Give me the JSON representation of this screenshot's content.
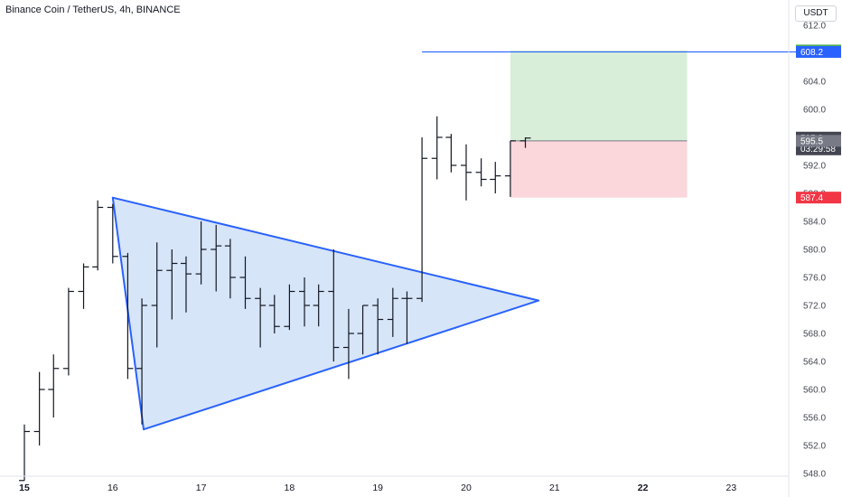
{
  "header": {
    "title": "Binance Coin / TetherUS, 4h, BINANCE"
  },
  "price_axis": {
    "currency": "USDT"
  },
  "colors": {
    "candle": "#131722",
    "triangle_stroke": "#2962ff",
    "triangle_fill": "#cfe0f7",
    "hline": "#2962ff",
    "profit_zone": "#d8eed8",
    "loss_zone": "#fbd6da",
    "badge_green": "#4caf50",
    "badge_blue": "#2962ff",
    "badge_red": "#f23645",
    "badge_dark": "#434651",
    "badge_gray": "#787b86"
  },
  "chart_data": {
    "type": "bar",
    "style": "ohlc",
    "xlabel": "",
    "ylabel": "",
    "ylim": [
      547,
      613
    ],
    "grid": false,
    "x_ticks": [
      "15",
      "16",
      "17",
      "18",
      "19",
      "20",
      "21",
      "22",
      "23"
    ],
    "y_ticks": [
      548.0,
      552.0,
      556.0,
      560.0,
      564.0,
      568.0,
      572.0,
      576.0,
      580.0,
      584.0,
      588.0,
      592.0,
      596.0,
      600.0,
      604.0,
      608.0,
      612.0
    ],
    "bars": [
      {
        "t": 15.0,
        "o": 547.0,
        "h": 555.0,
        "l": 547.0,
        "c": 554.0
      },
      {
        "t": 15.17,
        "o": 554.0,
        "h": 562.5,
        "l": 552.0,
        "c": 560.0
      },
      {
        "t": 15.33,
        "o": 560.0,
        "h": 565.0,
        "l": 556.0,
        "c": 563.0
      },
      {
        "t": 15.5,
        "o": 563.0,
        "h": 574.5,
        "l": 562.0,
        "c": 574.0
      },
      {
        "t": 15.67,
        "o": 574.0,
        "h": 578.0,
        "l": 571.5,
        "c": 577.5
      },
      {
        "t": 15.83,
        "o": 577.5,
        "h": 587.0,
        "l": 577.0,
        "c": 586.0
      },
      {
        "t": 16.0,
        "o": 586.0,
        "h": 586.5,
        "l": 578.0,
        "c": 579.0
      },
      {
        "t": 16.17,
        "o": 579.0,
        "h": 579.5,
        "l": 561.5,
        "c": 563.0
      },
      {
        "t": 16.33,
        "o": 563.0,
        "h": 573.0,
        "l": 555.0,
        "c": 572.0
      },
      {
        "t": 16.5,
        "o": 572.0,
        "h": 581.0,
        "l": 566.0,
        "c": 577.0
      },
      {
        "t": 16.67,
        "o": 577.0,
        "h": 580.0,
        "l": 570.0,
        "c": 578.0
      },
      {
        "t": 16.83,
        "o": 578.0,
        "h": 579.0,
        "l": 571.0,
        "c": 576.5
      },
      {
        "t": 17.0,
        "o": 576.5,
        "h": 584.0,
        "l": 575.0,
        "c": 580.0
      },
      {
        "t": 17.17,
        "o": 580.0,
        "h": 583.5,
        "l": 574.0,
        "c": 580.5
      },
      {
        "t": 17.33,
        "o": 580.5,
        "h": 581.5,
        "l": 573.0,
        "c": 576.0
      },
      {
        "t": 17.5,
        "o": 576.0,
        "h": 579.0,
        "l": 571.5,
        "c": 573.0
      },
      {
        "t": 17.67,
        "o": 573.0,
        "h": 574.5,
        "l": 566.0,
        "c": 572.0
      },
      {
        "t": 17.83,
        "o": 572.0,
        "h": 573.5,
        "l": 568.0,
        "c": 569.0
      },
      {
        "t": 18.0,
        "o": 569.0,
        "h": 575.0,
        "l": 568.5,
        "c": 574.0
      },
      {
        "t": 18.17,
        "o": 574.0,
        "h": 576.0,
        "l": 569.0,
        "c": 572.0
      },
      {
        "t": 18.33,
        "o": 572.0,
        "h": 575.0,
        "l": 569.0,
        "c": 574.0
      },
      {
        "t": 18.5,
        "o": 574.0,
        "h": 580.0,
        "l": 564.0,
        "c": 566.0
      },
      {
        "t": 18.67,
        "o": 566.0,
        "h": 571.5,
        "l": 561.5,
        "c": 568.0
      },
      {
        "t": 18.83,
        "o": 568.0,
        "h": 572.0,
        "l": 565.0,
        "c": 572.0
      },
      {
        "t": 19.0,
        "o": 572.0,
        "h": 573.0,
        "l": 565.0,
        "c": 570.0
      },
      {
        "t": 19.17,
        "o": 570.0,
        "h": 574.5,
        "l": 567.5,
        "c": 573.0
      },
      {
        "t": 19.33,
        "o": 573.0,
        "h": 574.0,
        "l": 566.5,
        "c": 573.0
      },
      {
        "t": 19.5,
        "o": 573.0,
        "h": 596.0,
        "l": 572.5,
        "c": 593.0
      },
      {
        "t": 19.67,
        "o": 593.0,
        "h": 599.0,
        "l": 590.0,
        "c": 596.0
      },
      {
        "t": 19.83,
        "o": 596.0,
        "h": 596.5,
        "l": 591.0,
        "c": 592.0
      },
      {
        "t": 20.0,
        "o": 592.0,
        "h": 595.0,
        "l": 587.0,
        "c": 591.0
      },
      {
        "t": 20.17,
        "o": 591.0,
        "h": 593.0,
        "l": 589.0,
        "c": 590.0
      },
      {
        "t": 20.33,
        "o": 590.0,
        "h": 592.5,
        "l": 588.0,
        "c": 590.5
      },
      {
        "t": 20.5,
        "o": 590.5,
        "h": 595.5,
        "l": 587.5,
        "c": 595.5
      },
      {
        "t": 20.67,
        "o": 595.5,
        "h": 596.0,
        "l": 594.5,
        "c": 595.9
      }
    ],
    "triangle": [
      {
        "t": 16.0,
        "p": 587.4
      },
      {
        "t": 16.35,
        "p": 554.3
      },
      {
        "t": 20.82,
        "p": 572.7
      }
    ],
    "horizontal_line": {
      "t_start": 19.5,
      "t_end": 23.9,
      "p": 608.2
    },
    "position": {
      "t_start": 20.5,
      "t_end": 22.5,
      "entry": 595.5,
      "target": 608.4,
      "stop": 587.4
    },
    "price_labels": [
      {
        "value": "608.4",
        "p": 608.4,
        "color": "badge_green"
      },
      {
        "value": "608.2",
        "p": 608.2,
        "color": "badge_blue"
      },
      {
        "value": "595.9",
        "p": 595.9,
        "color": "badge_dark",
        "sub": "03:29:58"
      },
      {
        "value": "595.5",
        "p": 595.5,
        "color": "badge_gray"
      },
      {
        "value": "587.4",
        "p": 587.4,
        "color": "badge_red"
      }
    ]
  }
}
